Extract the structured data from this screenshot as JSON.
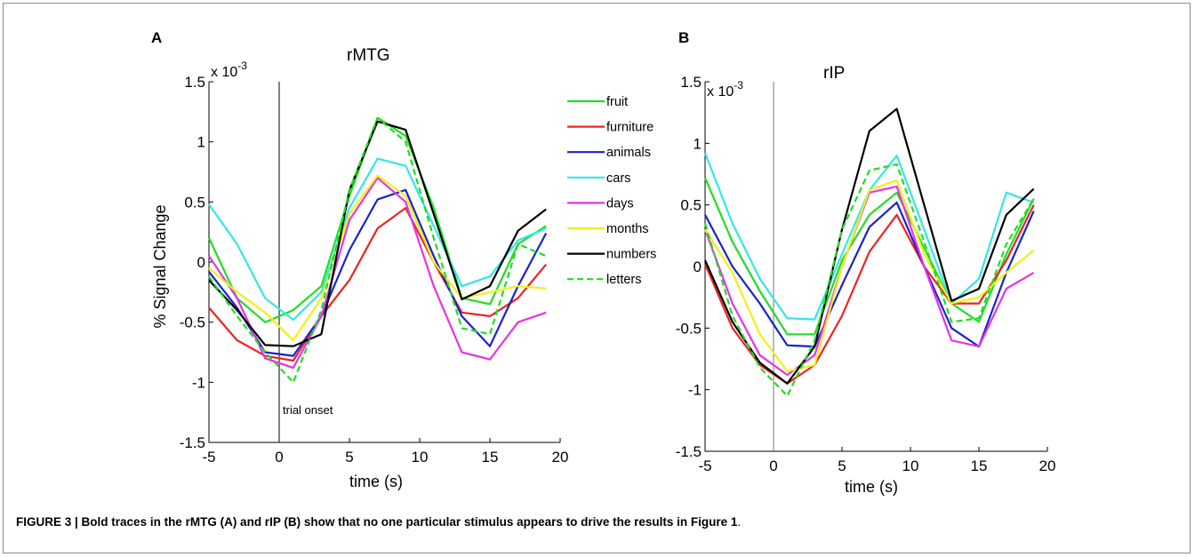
{
  "caption": {
    "figure_label": "FIGURE 3 | ",
    "text": "Bold traces in the rMTG (A) and rIP (B) show that no one particular stimulus appears to drive the results in ",
    "ref": "Figure 1",
    "end": "."
  },
  "legend_entries": [
    {
      "name": "fruit",
      "color": "#22dd22",
      "dash": false
    },
    {
      "name": "furniture",
      "color": "#ee2222",
      "dash": false
    },
    {
      "name": "animals",
      "color": "#1a22cc",
      "dash": false
    },
    {
      "name": "cars",
      "color": "#33e6e6",
      "dash": false
    },
    {
      "name": "days",
      "color": "#e633e6",
      "dash": false
    },
    {
      "name": "months",
      "color": "#f0f018",
      "dash": false
    },
    {
      "name": "numbers",
      "color": "#000000",
      "dash": false
    },
    {
      "name": "letters",
      "color": "#22dd22",
      "dash": true
    }
  ],
  "chart_data": [
    {
      "panel_label": "A",
      "type": "line",
      "title": "rMTG",
      "xlabel": "time (s)",
      "ylabel": "% Signal Change",
      "y_exponent": "x 10",
      "y_exponent_power": "-3",
      "xlim": [
        -5,
        20
      ],
      "ylim": [
        -1.5,
        1.5
      ],
      "xticks": [
        "-5",
        "0",
        "5",
        "10",
        "15",
        "20"
      ],
      "yticks": [
        "1.5",
        "1",
        "0.5",
        "0",
        "-0.5",
        "-1",
        "-1.5"
      ],
      "annotation": "trial onset",
      "onset_line_x": 0,
      "legend": "top-right",
      "grid": false,
      "x": [
        -5,
        -3,
        -1,
        1,
        3,
        5,
        7,
        9,
        11,
        13,
        15,
        17,
        19
      ],
      "series": [
        {
          "name": "fruit",
          "values": [
            0.2,
            -0.3,
            -0.5,
            -0.4,
            -0.2,
            0.55,
            1.2,
            1.05,
            0.45,
            -0.3,
            -0.35,
            0.15,
            0.3
          ]
        },
        {
          "name": "furniture",
          "values": [
            -0.38,
            -0.65,
            -0.78,
            -0.82,
            -0.45,
            -0.15,
            0.28,
            0.45,
            0.0,
            -0.42,
            -0.45,
            -0.3,
            -0.02
          ]
        },
        {
          "name": "animals",
          "values": [
            -0.08,
            -0.38,
            -0.75,
            -0.78,
            -0.45,
            0.1,
            0.52,
            0.6,
            0.05,
            -0.45,
            -0.7,
            -0.2,
            0.24
          ]
        },
        {
          "name": "cars",
          "values": [
            0.48,
            0.15,
            -0.3,
            -0.48,
            -0.25,
            0.45,
            0.86,
            0.8,
            0.3,
            -0.2,
            -0.12,
            0.18,
            0.28
          ]
        },
        {
          "name": "days",
          "values": [
            0.05,
            -0.3,
            -0.8,
            -0.88,
            -0.45,
            0.35,
            0.7,
            0.5,
            -0.2,
            -0.75,
            -0.81,
            -0.5,
            -0.42
          ]
        },
        {
          "name": "months",
          "values": [
            -0.05,
            -0.25,
            -0.42,
            -0.65,
            -0.3,
            0.4,
            0.72,
            0.55,
            0.0,
            -0.3,
            -0.25,
            -0.2,
            -0.22
          ]
        },
        {
          "name": "numbers",
          "values": [
            -0.15,
            -0.4,
            -0.69,
            -0.7,
            -0.6,
            0.6,
            1.17,
            1.1,
            0.4,
            -0.31,
            -0.2,
            0.26,
            0.44
          ]
        },
        {
          "name": "letters",
          "values": [
            -0.12,
            -0.45,
            -0.75,
            -1.0,
            -0.4,
            0.6,
            1.2,
            1.0,
            0.2,
            -0.55,
            -0.6,
            0.15,
            0.05
          ]
        }
      ]
    },
    {
      "panel_label": "B",
      "type": "line",
      "title": "rIP",
      "xlabel": "time (s)",
      "ylabel": "",
      "y_exponent": "x 10",
      "y_exponent_power": "-3",
      "xlim": [
        -5,
        20
      ],
      "ylim": [
        -1.5,
        1.5
      ],
      "xticks": [
        "-5",
        "0",
        "5",
        "10",
        "15",
        "20"
      ],
      "yticks": [
        "1.5",
        "1",
        "0.5",
        "0",
        "-0.5",
        "-1",
        "-1.5"
      ],
      "onset_line_x": 0,
      "grid": false,
      "x": [
        -5,
        -3,
        -1,
        1,
        3,
        5,
        7,
        9,
        11,
        13,
        15,
        17,
        19
      ],
      "series": [
        {
          "name": "fruit",
          "values": [
            0.72,
            0.2,
            -0.2,
            -0.55,
            -0.55,
            0.05,
            0.42,
            0.6,
            0.15,
            -0.3,
            -0.45,
            0.1,
            0.55
          ]
        },
        {
          "name": "furniture",
          "values": [
            0.02,
            -0.5,
            -0.8,
            -0.95,
            -0.8,
            -0.4,
            0.12,
            0.42,
            0.0,
            -0.3,
            -0.3,
            0.05,
            0.5
          ]
        },
        {
          "name": "animals",
          "values": [
            0.42,
            0.0,
            -0.3,
            -0.64,
            -0.65,
            -0.15,
            0.32,
            0.52,
            0.0,
            -0.5,
            -0.65,
            -0.05,
            0.45
          ]
        },
        {
          "name": "cars",
          "values": [
            0.92,
            0.35,
            -0.1,
            -0.42,
            -0.43,
            0.1,
            0.62,
            0.9,
            0.3,
            -0.3,
            -0.1,
            0.6,
            0.52
          ]
        },
        {
          "name": "days",
          "values": [
            0.3,
            -0.3,
            -0.72,
            -0.88,
            -0.72,
            0.0,
            0.6,
            0.65,
            0.0,
            -0.6,
            -0.65,
            -0.18,
            -0.05
          ]
        },
        {
          "name": "months",
          "values": [
            0.3,
            -0.05,
            -0.55,
            -0.85,
            -0.8,
            0.0,
            0.62,
            0.7,
            0.1,
            -0.3,
            -0.25,
            -0.05,
            0.13
          ]
        },
        {
          "name": "numbers",
          "values": [
            0.05,
            -0.45,
            -0.78,
            -0.95,
            -0.65,
            0.3,
            1.1,
            1.28,
            0.5,
            -0.28,
            -0.18,
            0.42,
            0.63
          ]
        },
        {
          "name": "letters",
          "values": [
            0.35,
            -0.4,
            -0.82,
            -1.05,
            -0.6,
            0.3,
            0.78,
            0.83,
            0.2,
            -0.45,
            -0.42,
            0.18,
            0.55
          ]
        }
      ]
    }
  ]
}
